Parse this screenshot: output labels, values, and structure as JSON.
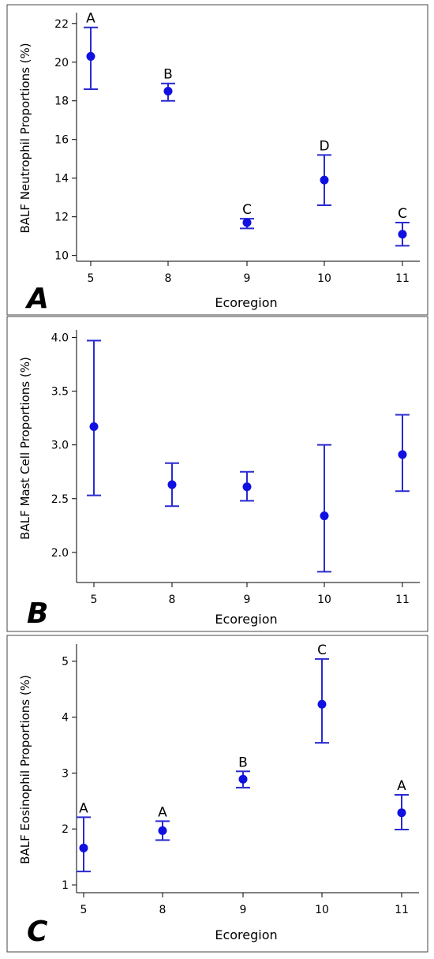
{
  "colors": {
    "marker": "#1010e0",
    "errorbar": "#2a2ad0",
    "axis": "#000000",
    "frame": "#444444"
  },
  "chart_data": [
    {
      "type": "scatter",
      "panel_label": "A",
      "xlabel": "Ecoregion",
      "ylabel": "BALF Neutrophil Proportions (%)",
      "categories": [
        "5",
        "8",
        "9",
        "10",
        "11"
      ],
      "yticks": [
        "10",
        "12",
        "14",
        "16",
        "18",
        "20",
        "22"
      ],
      "ylim": [
        9.7,
        22.4
      ],
      "grid": false,
      "series": [
        {
          "values": [
            20.3,
            18.5,
            11.7,
            13.9,
            11.1
          ],
          "lower": [
            18.6,
            18.0,
            11.4,
            12.6,
            10.5
          ],
          "upper": [
            21.8,
            18.9,
            11.9,
            15.2,
            11.7
          ],
          "group_letters": [
            "A",
            "B",
            "C",
            "D",
            "C"
          ]
        }
      ]
    },
    {
      "type": "scatter",
      "panel_label": "B",
      "xlabel": "Ecoregion",
      "ylabel": "BALF Mast Cell Proportions (%)",
      "categories": [
        "5",
        "8",
        "9",
        "10",
        "11"
      ],
      "yticks": [
        "2.0",
        "2.5",
        "3.0",
        "3.5",
        "4.0"
      ],
      "ylim": [
        1.72,
        4.04
      ],
      "grid": false,
      "series": [
        {
          "values": [
            3.17,
            2.63,
            2.61,
            2.34,
            2.91
          ],
          "lower": [
            2.53,
            2.43,
            2.48,
            1.82,
            2.57
          ],
          "upper": [
            3.97,
            2.83,
            2.75,
            3.0,
            3.28
          ],
          "group_letters": [
            "",
            "",
            "",
            "",
            ""
          ]
        }
      ]
    },
    {
      "type": "scatter",
      "panel_label": "C",
      "xlabel": "Ecoregion",
      "ylabel": "BALF Eosinophil Proportions (%)",
      "categories": [
        "5",
        "8",
        "9",
        "10",
        "11"
      ],
      "yticks": [
        "1",
        "2",
        "3",
        "4",
        "5"
      ],
      "ylim": [
        0.86,
        5.25
      ],
      "grid": false,
      "series": [
        {
          "values": [
            1.66,
            1.97,
            2.89,
            4.23,
            2.29
          ],
          "lower": [
            1.24,
            1.8,
            2.74,
            3.54,
            1.99
          ],
          "upper": [
            2.21,
            2.14,
            3.03,
            5.04,
            2.61
          ],
          "group_letters": [
            "A",
            "A",
            "B",
            "C",
            "A"
          ]
        }
      ]
    }
  ]
}
